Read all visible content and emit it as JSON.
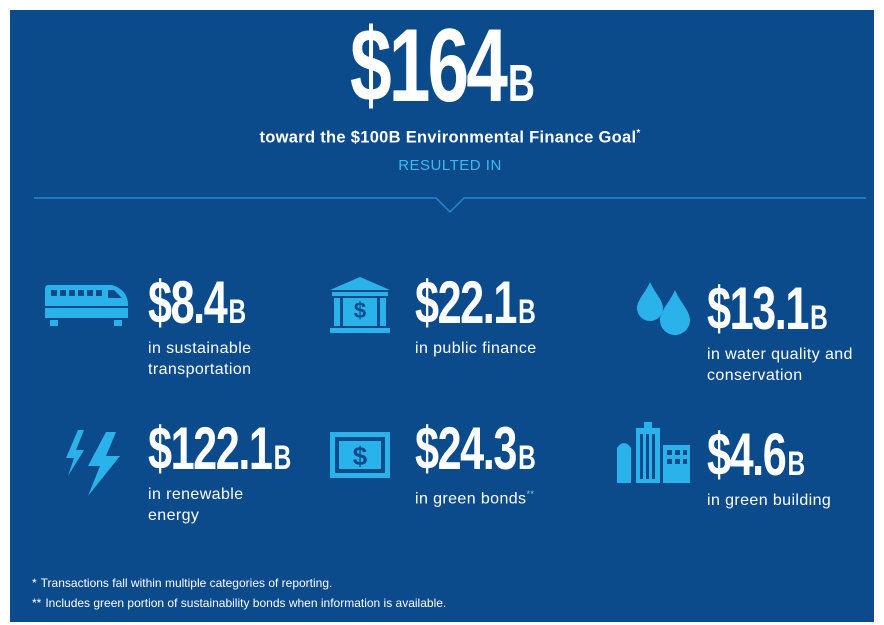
{
  "header": {
    "amount": "$164",
    "unit": "B",
    "subtitle": "toward the $100B Environmental Finance Goal",
    "subtitle_mark": "*",
    "result": "RESULTED IN"
  },
  "items": [
    {
      "amount": "$8.4",
      "unit": "B",
      "label": "in sustainable transportation"
    },
    {
      "amount": "$22.1",
      "unit": "B",
      "label": "in public finance"
    },
    {
      "amount": "$13.1",
      "unit": "B",
      "label": "in water quality and conservation"
    },
    {
      "amount": "$122.1",
      "unit": "B",
      "label": "in renewable energy"
    },
    {
      "amount": "$24.3",
      "unit": "B",
      "label": "in green bonds",
      "mark": "**"
    },
    {
      "amount": "$4.6",
      "unit": "B",
      "label": "in green building"
    }
  ],
  "footnotes": [
    {
      "mark": "*",
      "text": "Transactions fall within multiple categories of reporting."
    },
    {
      "mark": "**",
      "text": "Includes green portion of sustainability bonds when information is available."
    }
  ]
}
